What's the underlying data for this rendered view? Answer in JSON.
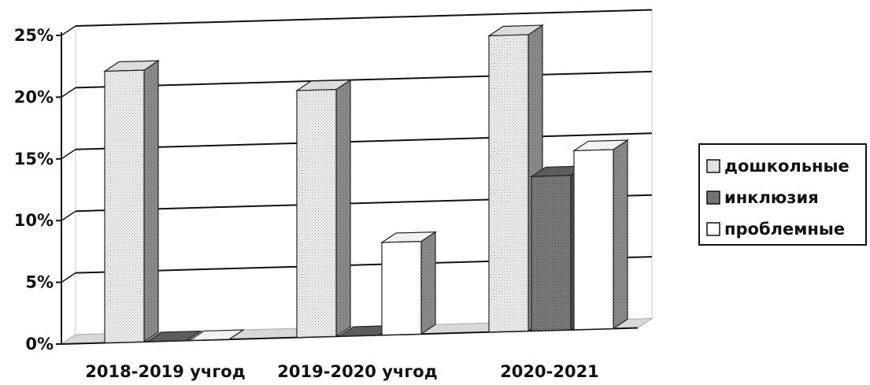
{
  "chart_data": {
    "type": "bar",
    "style": "3d-clustered-column",
    "categories": [
      "2018-2019 учгод",
      "2019-2020 учгод",
      "2020-2021"
    ],
    "series": [
      {
        "name": "дошкольные",
        "values": [
          0.22,
          0.2,
          0.24
        ],
        "color": "#e4e4e4"
      },
      {
        "name": "инклюзия",
        "values": [
          0.0,
          0.0,
          0.125
        ],
        "color": "#6a6a6a"
      },
      {
        "name": "проблемные",
        "values": [
          0.0,
          0.075,
          0.145
        ],
        "color": "#ffffff"
      }
    ],
    "yticks": [
      "0%",
      "5%",
      "10%",
      "15%",
      "20%",
      "25%"
    ],
    "ylim": [
      0,
      0.25
    ],
    "grid": true,
    "legend_position": "right"
  }
}
